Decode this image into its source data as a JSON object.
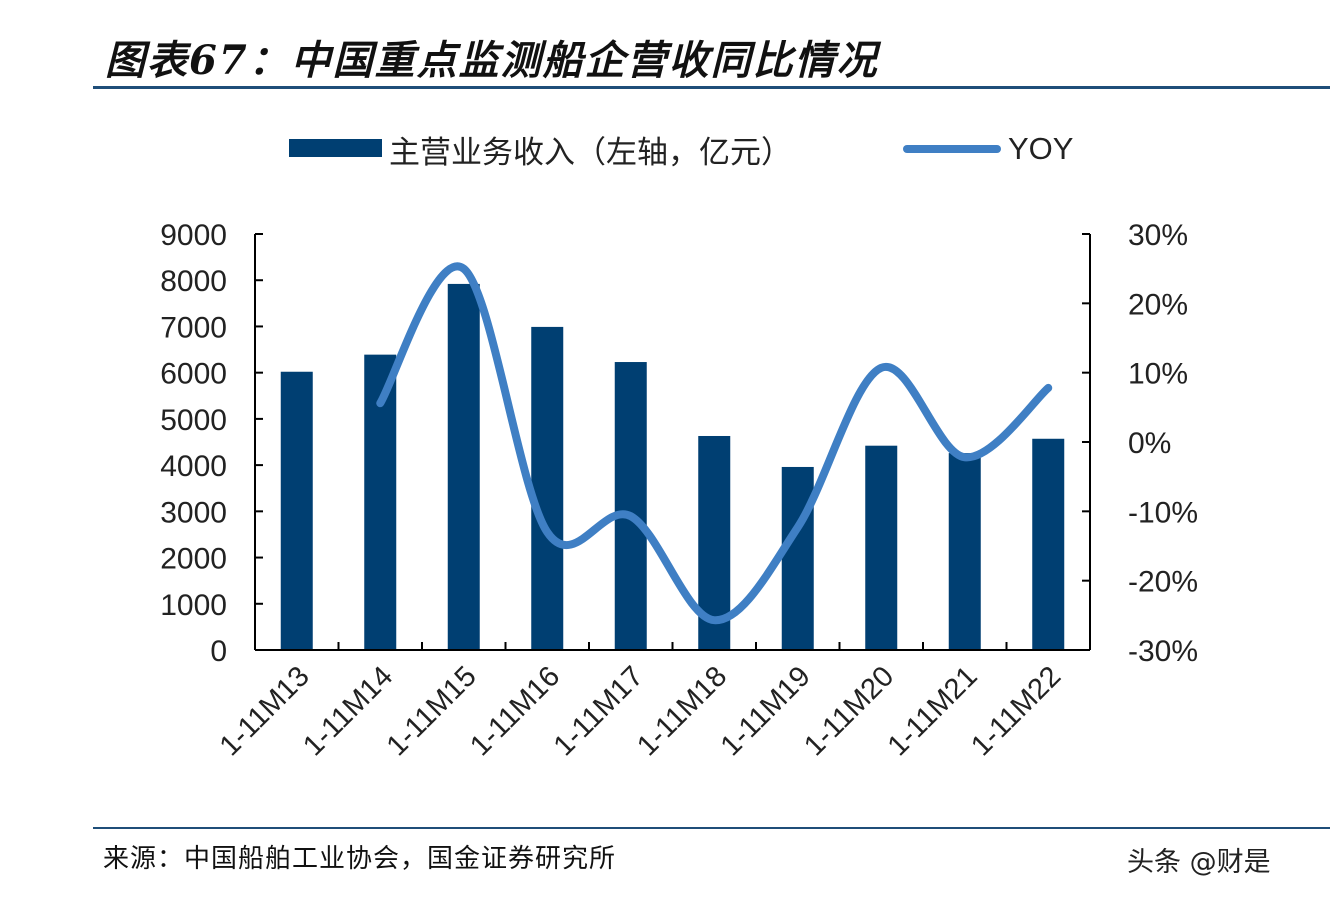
{
  "title": "图表67：中国重点监测船企营收同比情况",
  "footer": "来源：中国船舶工业协会，国金证券研究所",
  "watermark": "头条 @财是",
  "chart_data": {
    "type": "bar+line",
    "categories": [
      "1-11M13",
      "1-11M14",
      "1-11M15",
      "1-11M16",
      "1-11M17",
      "1-11M18",
      "1-11M19",
      "1-11M20",
      "1-11M21",
      "1-11M22"
    ],
    "series": [
      {
        "name": "主营业务收入（左轴，亿元）",
        "type": "bar",
        "axis": "left",
        "color": "#003f72",
        "values": [
          6020,
          6390,
          7920,
          6990,
          6230,
          4630,
          3960,
          4420,
          4260,
          4570
        ]
      },
      {
        "name": "YOY",
        "type": "line",
        "axis": "right",
        "color": "#3f7fc4",
        "smooth": true,
        "values": [
          null,
          5.6,
          25.0,
          -13.0,
          -10.7,
          -25.7,
          -12.3,
          10.7,
          -2.2,
          7.8
        ]
      }
    ],
    "left_axis": {
      "min": 0,
      "max": 9000,
      "ticks": [
        "0",
        "1000",
        "2000",
        "3000",
        "4000",
        "5000",
        "6000",
        "7000",
        "8000",
        "9000"
      ]
    },
    "right_axis": {
      "min": -30,
      "max": 30,
      "unit": "%",
      "ticks": [
        "-30%",
        "-20%",
        "-10%",
        "0%",
        "10%",
        "20%",
        "30%"
      ]
    },
    "legend_position": "top",
    "grid": false
  }
}
